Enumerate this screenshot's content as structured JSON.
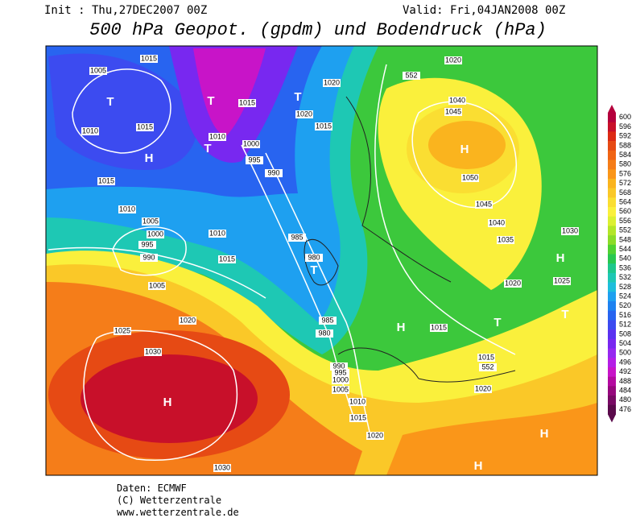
{
  "header": {
    "init": "Init : Thu,27DEC2007 00Z",
    "valid": "Valid: Fri,04JAN2008 00Z",
    "title": "500 hPa Geopot. (gpdm) und Bodendruck (hPa)"
  },
  "map": {
    "labels": [
      "1015",
      "1005",
      "T",
      "1010",
      "1015",
      "H",
      "1015",
      "1010",
      "1005",
      "1000",
      "995",
      "990",
      "1005",
      "1010",
      "1015",
      "T",
      "T",
      "1010",
      "1015",
      "1000",
      "995",
      "990",
      "985",
      "980",
      "T",
      "985",
      "980",
      "990",
      "995",
      "1000",
      "1005",
      "1010",
      "1015",
      "1020",
      "1020",
      "1025",
      "1030",
      "H",
      "1030",
      "H",
      "1045",
      "1040",
      "1050",
      "1045",
      "1040",
      "1035",
      "1030",
      "H",
      "1025",
      "1020",
      "T",
      "T",
      "H",
      "1015",
      "1015",
      "1020",
      "H",
      "H",
      "1020",
      "1020",
      "1015",
      "1020",
      "T",
      "552",
      "552"
    ]
  },
  "colorbar": {
    "levels": [
      600,
      596,
      592,
      588,
      584,
      580,
      576,
      572,
      568,
      564,
      560,
      556,
      552,
      548,
      544,
      540,
      536,
      532,
      528,
      524,
      520,
      516,
      512,
      508,
      504,
      500,
      496,
      492,
      488,
      484,
      480,
      476
    ],
    "colors": [
      "#b4003c",
      "#c8102a",
      "#dc2a14",
      "#e64a14",
      "#f06414",
      "#f57d19",
      "#fa9619",
      "#fab41e",
      "#fac828",
      "#fade32",
      "#faf03c",
      "#dcf032",
      "#b4e628",
      "#8cdc28",
      "#50d232",
      "#28c850",
      "#1ec88c",
      "#1ec8b4",
      "#1ebedc",
      "#1ea0f0",
      "#1e82f0",
      "#2864f0",
      "#3c4bf0",
      "#5a32f0",
      "#7828f0",
      "#9628f0",
      "#b41ee6",
      "#c814c8",
      "#b40aa0",
      "#96087d",
      "#780a64",
      "#5a0a4b"
    ]
  },
  "footer": {
    "lines": [
      "Daten: ECMWF",
      "(C) Wetterzentrale",
      "www.wetterzentrale.de"
    ]
  }
}
